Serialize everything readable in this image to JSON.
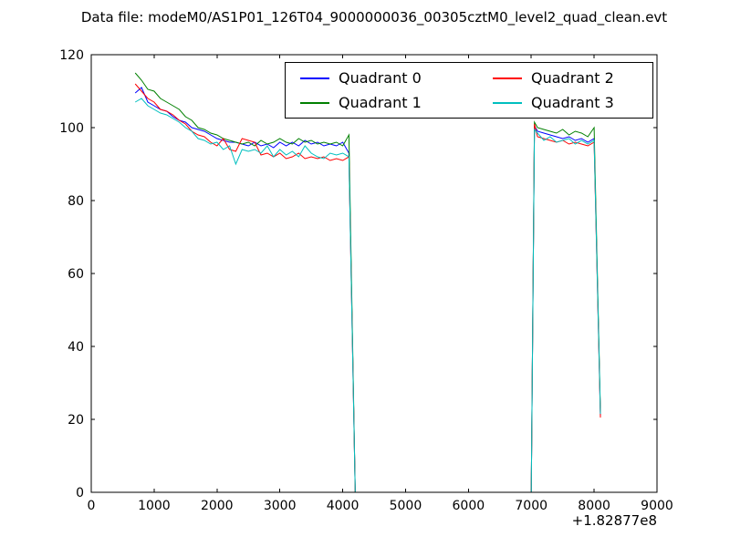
{
  "chart_data": {
    "type": "line",
    "title": "Data file: modeM0/AS1P01_126T04_9000000036_00305cztM0_level2_quad_clean.evt",
    "xlabel": "",
    "ylabel": "",
    "xlim": [
      0,
      9000
    ],
    "ylim": [
      0,
      120
    ],
    "xticks": [
      0,
      1000,
      2000,
      3000,
      4000,
      5000,
      6000,
      7000,
      8000,
      9000
    ],
    "yticks": [
      0,
      20,
      40,
      60,
      80,
      100,
      120
    ],
    "x_offset_label": "+1.82877e8",
    "grid": false,
    "legend_position": "upper right",
    "x": [
      700,
      800,
      900,
      1000,
      1100,
      1200,
      1300,
      1400,
      1500,
      1600,
      1700,
      1800,
      1900,
      2000,
      2100,
      2200,
      2300,
      2400,
      2500,
      2600,
      2700,
      2800,
      2900,
      3000,
      3100,
      3200,
      3300,
      3400,
      3500,
      3600,
      3700,
      3800,
      3900,
      4000,
      4100,
      4200,
      7000,
      7050,
      7100,
      7200,
      7300,
      7400,
      7500,
      7600,
      7700,
      7800,
      7900,
      8000,
      8100
    ],
    "series": [
      {
        "name": "Quadrant 0",
        "color": "#0000ff",
        "values": [
          109.5,
          111,
          107,
          106,
          105,
          104.5,
          103,
          102,
          101.5,
          100,
          99.5,
          99,
          98,
          97,
          96.5,
          96,
          96,
          95.5,
          95,
          96,
          95,
          95.5,
          94.5,
          96,
          95,
          96,
          95,
          96.5,
          95.5,
          96,
          95,
          95.5,
          95,
          96,
          93,
          0,
          0,
          100.5,
          99,
          98.5,
          98,
          97.5,
          97,
          97.5,
          96.5,
          97,
          96,
          97,
          21
        ]
      },
      {
        "name": "Quadrant 1",
        "color": "#008000",
        "values": [
          115,
          113,
          110.5,
          110,
          108,
          107,
          106,
          105,
          103,
          102,
          100,
          99.5,
          98.5,
          98,
          97,
          96.5,
          96,
          95.5,
          96,
          95,
          96.5,
          95.5,
          96,
          97,
          96,
          95.5,
          97,
          96,
          96.5,
          95.5,
          96,
          95.5,
          96,
          95,
          98,
          0,
          0,
          101.5,
          100,
          99.5,
          99,
          98.5,
          99.5,
          98,
          99,
          98.5,
          97.5,
          100,
          22
        ]
      },
      {
        "name": "Quadrant 2",
        "color": "#ff0000",
        "values": [
          112,
          110,
          108,
          107,
          105,
          104.5,
          103.5,
          102,
          101,
          99,
          98,
          97.5,
          96,
          95,
          97,
          94,
          93.5,
          97,
          96.5,
          96,
          92.5,
          93,
          92,
          93,
          91.5,
          92,
          93,
          91.5,
          92,
          91.5,
          92,
          91,
          91.5,
          91,
          92,
          0,
          0,
          101,
          97.5,
          97,
          96.5,
          96,
          96.5,
          95.5,
          96,
          95.5,
          95,
          96,
          20.5
        ]
      },
      {
        "name": "Quadrant 3",
        "color": "#00bfbf",
        "values": [
          107,
          108,
          106,
          105,
          104,
          103.5,
          102.5,
          101.5,
          100,
          99,
          97,
          96.5,
          95.5,
          96,
          94,
          95,
          90,
          94,
          93.5,
          94,
          93,
          95,
          92,
          94,
          92.5,
          93.5,
          92,
          95,
          93,
          92,
          91.5,
          93,
          92.5,
          93,
          92,
          0,
          0,
          99.5,
          98.5,
          96.5,
          97.5,
          96,
          96.5,
          97,
          95.5,
          96.5,
          95.5,
          96.5,
          21.5
        ]
      }
    ]
  }
}
